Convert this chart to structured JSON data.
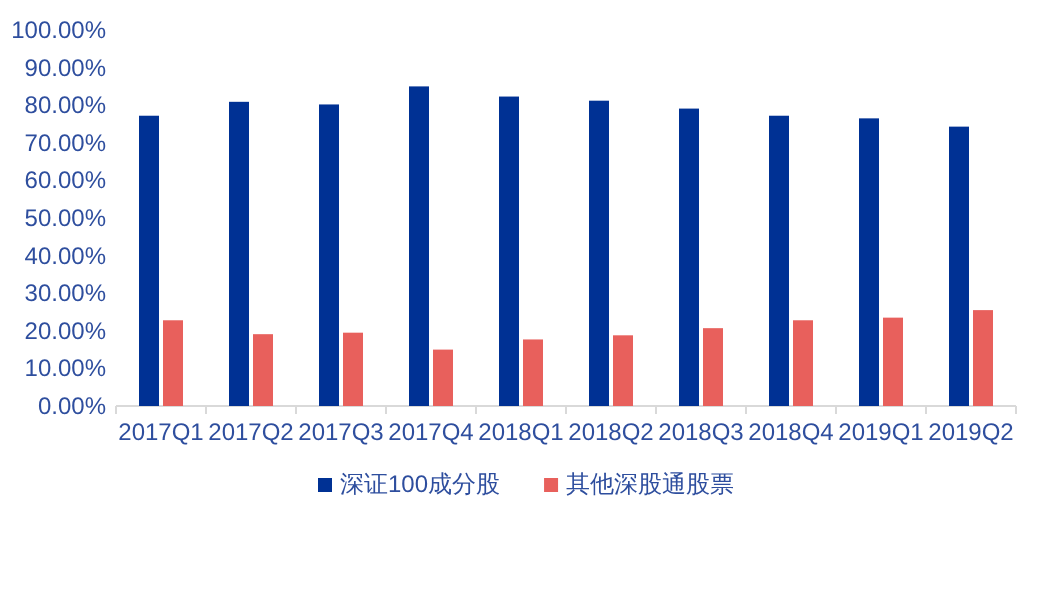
{
  "chart_data": {
    "type": "bar",
    "categories": [
      "2017Q1",
      "2017Q2",
      "2017Q3",
      "2017Q4",
      "2018Q1",
      "2018Q2",
      "2018Q3",
      "2018Q4",
      "2019Q1",
      "2019Q2"
    ],
    "series": [
      {
        "name": "深证100成分股",
        "color": "#003194",
        "values": [
          77.2,
          80.9,
          80.2,
          85.0,
          82.3,
          81.2,
          79.1,
          77.2,
          76.5,
          74.3
        ]
      },
      {
        "name": "其他深股通股票",
        "color": "#e8605c",
        "values": [
          22.8,
          19.1,
          19.5,
          15.0,
          17.7,
          18.8,
          20.7,
          22.8,
          23.5,
          25.5
        ]
      }
    ],
    "ylim": [
      0,
      100
    ],
    "yticks": [
      {
        "value": 0,
        "label": "0.00%"
      },
      {
        "value": 10,
        "label": "10.00%"
      },
      {
        "value": 20,
        "label": "20.00%"
      },
      {
        "value": 30,
        "label": "30.00%"
      },
      {
        "value": 40,
        "label": "40.00%"
      },
      {
        "value": 50,
        "label": "50.00%"
      },
      {
        "value": 60,
        "label": "60.00%"
      },
      {
        "value": 70,
        "label": "70.00%"
      },
      {
        "value": 80,
        "label": "80.00%"
      },
      {
        "value": 90,
        "label": "90.00%"
      },
      {
        "value": 100,
        "label": "100.00%"
      }
    ],
    "grid": false,
    "legend": "bottom"
  }
}
